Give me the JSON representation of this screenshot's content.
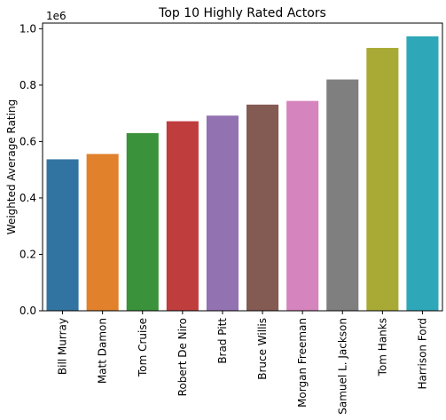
{
  "chart_data": {
    "type": "bar",
    "title": "Top 10 Highly Rated Actors",
    "xlabel": "",
    "ylabel": "Weighted Average Rating",
    "y_offset_label": "1e6",
    "ylim": [
      0,
      1.02
    ],
    "yticks": [
      0.0,
      0.2,
      0.4,
      0.6,
      0.8,
      1.0
    ],
    "ytick_labels": [
      "0.0",
      "0.2",
      "0.4",
      "0.6",
      "0.8",
      "1.0"
    ],
    "categories": [
      "Bill Murray",
      "Matt Damon",
      "Tom Cruise",
      "Robert De Niro",
      "Brad Pitt",
      "Bruce Willis",
      "Morgan Freeman",
      "Samuel L. Jackson",
      "Tom Hanks",
      "Harrison Ford"
    ],
    "values": [
      0.537,
      0.556,
      0.63,
      0.672,
      0.692,
      0.731,
      0.744,
      0.82,
      0.932,
      0.973
    ],
    "colors": [
      "#3274a1",
      "#e1812c",
      "#3a923a",
      "#c03d3e",
      "#9372b2",
      "#845b53",
      "#d684bd",
      "#7f7f7f",
      "#a9aa35",
      "#2ea8b8"
    ],
    "grid": false,
    "legend": "none"
  }
}
